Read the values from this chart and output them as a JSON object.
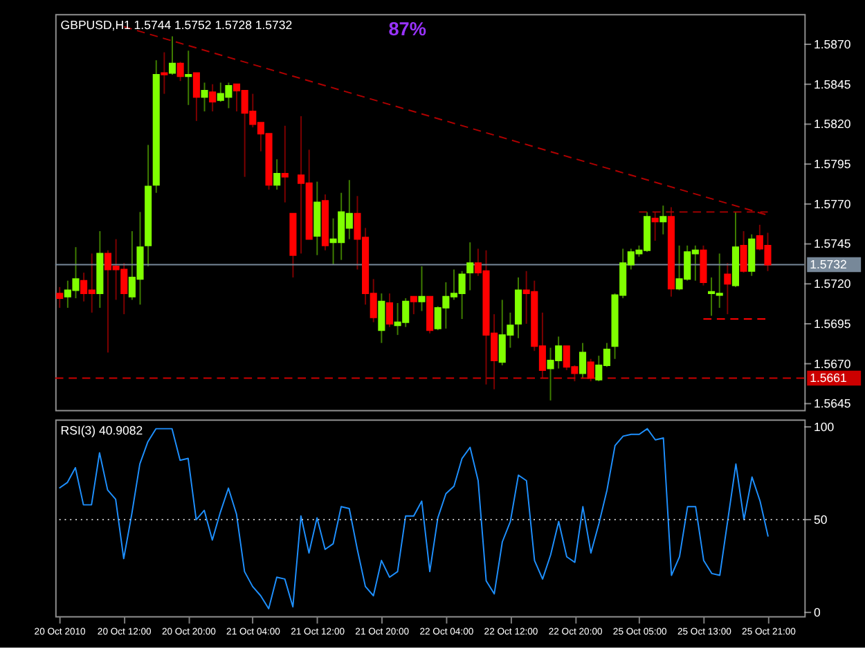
{
  "chart_data": [
    {
      "type": "candlestick",
      "title": "GBPUSD,H1 1.5744 1.5752 1.5728 1.5732",
      "categories": [
        "20 Oct 2010",
        null,
        null,
        null,
        null,
        null,
        null,
        null,
        "20 Oct 12:00",
        null,
        null,
        null,
        null,
        null,
        null,
        null,
        "20 Oct 20:00",
        null,
        null,
        null,
        null,
        null,
        null,
        null,
        "21 Oct 04:00",
        null,
        null,
        null,
        null,
        null,
        null,
        null,
        "21 Oct 12:00",
        null,
        null,
        null,
        null,
        null,
        null,
        null,
        "21 Oct 20:00",
        null,
        null,
        null,
        null,
        null,
        null,
        null,
        "22 Oct 04:00",
        null,
        null,
        null,
        null,
        null,
        null,
        null,
        "22 Oct 12:00",
        null,
        null,
        null,
        null,
        null,
        null,
        null,
        "22 Oct 20:00",
        null,
        null,
        null,
        null,
        null,
        null,
        null,
        "25 Oct 05:00",
        null,
        null,
        null,
        null,
        null,
        null,
        null,
        "25 Oct 13:00",
        null,
        null,
        null,
        null,
        null,
        null,
        null,
        "25 Oct 21:00",
        null,
        null,
        null,
        null
      ],
      "ohlc": [
        [
          1.5714,
          1.5718,
          1.5705,
          1.5711
        ],
        [
          1.5712,
          1.5722,
          1.5705,
          1.5716
        ],
        [
          1.5716,
          1.5743,
          1.5711,
          1.5723
        ],
        [
          1.5722,
          1.5727,
          1.5709,
          1.5714
        ],
        [
          1.5716,
          1.5739,
          1.5702,
          1.5714
        ],
        [
          1.5714,
          1.5753,
          1.5705,
          1.5739
        ],
        [
          1.5739,
          1.5741,
          1.5677,
          1.5729
        ],
        [
          1.5731,
          1.5748,
          1.571,
          1.5729
        ],
        [
          1.5729,
          1.5733,
          1.5701,
          1.5714
        ],
        [
          1.5712,
          1.5753,
          1.571,
          1.5724
        ],
        [
          1.5723,
          1.5765,
          1.5707,
          1.5743
        ],
        [
          1.5744,
          1.5807,
          1.5731,
          1.5781
        ],
        [
          1.5782,
          1.586,
          1.5777,
          1.5851
        ],
        [
          1.5852,
          1.5865,
          1.5839,
          1.5851
        ],
        [
          1.5852,
          1.5875,
          1.5851,
          1.5858
        ],
        [
          1.5858,
          1.5859,
          1.5847,
          1.585
        ],
        [
          1.585,
          1.5866,
          1.5832,
          1.5851
        ],
        [
          1.5852,
          1.5852,
          1.5822,
          1.5837
        ],
        [
          1.5837,
          1.5846,
          1.5828,
          1.5841
        ],
        [
          1.584,
          1.5845,
          1.5828,
          1.5834
        ],
        [
          1.5835,
          1.5846,
          1.5834,
          1.5839
        ],
        [
          1.5837,
          1.5846,
          1.583,
          1.5844
        ],
        [
          1.5845,
          1.5845,
          1.5828,
          1.5841
        ],
        [
          1.5841,
          1.5841,
          1.5787,
          1.5827
        ],
        [
          1.5828,
          1.5839,
          1.5818,
          1.582
        ],
        [
          1.5821,
          1.5821,
          1.5803,
          1.5814
        ],
        [
          1.5814,
          1.5814,
          1.5779,
          1.5782
        ],
        [
          1.5782,
          1.5798,
          1.5779,
          1.5789
        ],
        [
          1.5789,
          1.5819,
          1.5771,
          1.5787
        ],
        [
          1.5764,
          1.5764,
          1.5724,
          1.5738
        ],
        [
          1.5788,
          1.5825,
          1.5739,
          1.5783
        ],
        [
          1.5783,
          1.5804,
          1.5748,
          1.5748
        ],
        [
          1.575,
          1.5784,
          1.5738,
          1.5771
        ],
        [
          1.5772,
          1.5776,
          1.5741,
          1.5744
        ],
        [
          1.5746,
          1.5761,
          1.5732,
          1.5748
        ],
        [
          1.5746,
          1.5777,
          1.5735,
          1.5765
        ],
        [
          1.5755,
          1.5785,
          1.5748,
          1.5764
        ],
        [
          1.5764,
          1.5775,
          1.5729,
          1.5748
        ],
        [
          1.5749,
          1.5755,
          1.5707,
          1.5714
        ],
        [
          1.5714,
          1.5723,
          1.5696,
          1.5699
        ],
        [
          1.5691,
          1.5714,
          1.5683,
          1.5709
        ],
        [
          1.5708,
          1.5714,
          1.5693,
          1.5695
        ],
        [
          1.5694,
          1.5708,
          1.5688,
          1.5696
        ],
        [
          1.5696,
          1.5711,
          1.5693,
          1.5709
        ],
        [
          1.5712,
          1.5712,
          1.5701,
          1.5709
        ],
        [
          1.5709,
          1.5731,
          1.5703,
          1.5712
        ],
        [
          1.5712,
          1.5712,
          1.5689,
          1.5691
        ],
        [
          1.5692,
          1.5706,
          1.5691,
          1.5705
        ],
        [
          1.5705,
          1.5721,
          1.5692,
          1.5712
        ],
        [
          1.5712,
          1.5729,
          1.571,
          1.5714
        ],
        [
          1.5714,
          1.5728,
          1.5698,
          1.5726
        ],
        [
          1.5727,
          1.5746,
          1.5716,
          1.5733
        ],
        [
          1.5733,
          1.5742,
          1.5725,
          1.5727
        ],
        [
          1.5728,
          1.5741,
          1.5657,
          1.5688
        ],
        [
          1.5689,
          1.5701,
          1.5654,
          1.5672
        ],
        [
          1.5671,
          1.571,
          1.5669,
          1.5688
        ],
        [
          1.5688,
          1.5702,
          1.568,
          1.5694
        ],
        [
          1.5695,
          1.5724,
          1.5686,
          1.5716
        ],
        [
          1.5716,
          1.5728,
          1.5695,
          1.5714
        ],
        [
          1.5715,
          1.5722,
          1.5678,
          1.5681
        ],
        [
          1.5681,
          1.5702,
          1.5661,
          1.5666
        ],
        [
          1.5667,
          1.568,
          1.5647,
          1.5672
        ],
        [
          1.5672,
          1.5687,
          1.5667,
          1.5681
        ],
        [
          1.5681,
          1.5681,
          1.5666,
          1.5668
        ],
        [
          1.5668,
          1.5669,
          1.5659,
          1.5664
        ],
        [
          1.5664,
          1.5683,
          1.5661,
          1.5677
        ],
        [
          1.5671,
          1.5673,
          1.5659,
          1.5661
        ],
        [
          1.566,
          1.5675,
          1.5659,
          1.5669
        ],
        [
          1.5669,
          1.5683,
          1.5668,
          1.5679
        ],
        [
          1.5681,
          1.5714,
          1.5673,
          1.5713
        ],
        [
          1.5713,
          1.5742,
          1.5711,
          1.5733
        ],
        [
          1.5732,
          1.5742,
          1.5729,
          1.574
        ],
        [
          1.5739,
          1.5744,
          1.5737,
          1.5741
        ],
        [
          1.5741,
          1.5765,
          1.574,
          1.5762
        ],
        [
          1.5761,
          1.5765,
          1.5747,
          1.5759
        ],
        [
          1.5759,
          1.5769,
          1.5751,
          1.5762
        ],
        [
          1.5762,
          1.5768,
          1.5712,
          1.5717
        ],
        [
          1.5717,
          1.5744,
          1.5716,
          1.5723
        ],
        [
          1.5723,
          1.5744,
          1.5722,
          1.574
        ],
        [
          1.5739,
          1.5744,
          1.5722,
          1.5741
        ],
        [
          1.5741,
          1.5744,
          1.5719,
          1.5721
        ],
        [
          1.5714,
          1.5724,
          1.57,
          1.5715
        ],
        [
          1.5713,
          1.5739,
          1.5705,
          1.5714
        ],
        [
          1.5726,
          1.5733,
          1.5701,
          1.572
        ],
        [
          1.5719,
          1.5765,
          1.5718,
          1.5743
        ],
        [
          1.5744,
          1.5753,
          1.5727,
          1.5728
        ],
        [
          1.5728,
          1.5751,
          1.5725,
          1.5748
        ],
        [
          1.575,
          1.5757,
          1.5741,
          1.5742
        ],
        [
          1.5744,
          1.5752,
          1.5728,
          1.5732
        ],
        null,
        null,
        null,
        null
      ],
      "colors": [
        "#ff0000",
        "#80ff00",
        "#80ff00",
        "#ff0000",
        "#ff0000",
        "#80ff00",
        "#ff0000",
        "#ff0000",
        "#ff0000",
        "#80ff00",
        "#80ff00",
        "#80ff00",
        "#80ff00",
        "#ff0000",
        "#80ff00",
        "#ff0000",
        "#80ff00",
        "#ff0000",
        "#80ff00",
        "#ff0000",
        "#80ff00",
        "#80ff00",
        "#ff0000",
        "#ff0000",
        "#ff0000",
        "#ff0000",
        "#ff0000",
        "#80ff00",
        "#ff0000",
        "#ff0000",
        "#ff0000",
        "#ff0000",
        "#80ff00",
        "#ff0000",
        "#80ff00",
        "#80ff00",
        "#80ff00",
        "#ff0000",
        "#ff0000",
        "#ff0000",
        "#80ff00",
        "#ff0000",
        "#80ff00",
        "#80ff00",
        "#ff0000",
        "#80ff00",
        "#ff0000",
        "#80ff00",
        "#80ff00",
        "#80ff00",
        "#80ff00",
        "#80ff00",
        "#ff0000",
        "#ff0000",
        "#ff0000",
        "#80ff00",
        "#80ff00",
        "#80ff00",
        "#ff0000",
        "#ff0000",
        "#ff0000",
        "#80ff00",
        "#80ff00",
        "#ff0000",
        "#ff0000",
        "#80ff00",
        "#ff0000",
        "#80ff00",
        "#80ff00",
        "#80ff00",
        "#80ff00",
        "#80ff00",
        "#80ff00",
        "#80ff00",
        "#ff0000",
        "#80ff00",
        "#ff0000",
        "#80ff00",
        "#80ff00",
        "#80ff00",
        "#ff0000",
        "#80ff00",
        "#80ff00",
        "#ff0000",
        "#80ff00",
        "#ff0000",
        "#80ff00",
        "#ff0000",
        "#ff0000",
        null,
        null,
        null,
        null
      ],
      "series": [
        {
          "type": "line",
          "x": [
            "20 Oct 12:00",
            "25 Oct 21:00"
          ],
          "values": [
            1.5881,
            1.5763
          ],
          "color": "#b00000",
          "line_style": "dashed"
        },
        {
          "type": "line",
          "x": [
            "25 Oct 05:00",
            "25 Oct 21:00"
          ],
          "values": [
            1.5765,
            1.5765
          ],
          "color": "#b00000",
          "line_style": "dashed"
        },
        {
          "type": "line",
          "x": [
            "25 Oct 13:00",
            "25 Oct 21:00"
          ],
          "values": [
            1.5698,
            1.5698
          ],
          "color": "#ff0000",
          "line_style": "dashed"
        }
      ],
      "ref_lines": [
        {
          "axis": "y",
          "value": 1.5732,
          "label": "1.5732",
          "color": "#778899",
          "line_style": "solid"
        },
        {
          "axis": "y",
          "value": 1.5661,
          "label": "1.5661",
          "color": "#cc0000",
          "line_style": "dashed"
        }
      ],
      "annotations": [
        "87%"
      ],
      "ylim": [
        1.5641,
        1.5889
      ],
      "yticks": [
        1.5645,
        {
          "value": 1.567,
          "label": "1.5670"
        },
        1.5695,
        {
          "value": 1.572,
          "label": "1.5720"
        },
        1.5745,
        {
          "value": 1.577,
          "label": "1.5770"
        },
        1.5795,
        {
          "value": 1.582,
          "label": "1.5820"
        },
        1.5845,
        {
          "value": 1.587,
          "label": "1.5870"
        }
      ],
      "tick_labels": "y"
    },
    {
      "type": "line",
      "title": "RSI(3) 40.9082",
      "color": "#1e90ff",
      "categories": [
        "20 Oct 2010",
        null,
        null,
        null,
        null,
        null,
        null,
        null,
        "20 Oct 12:00",
        null,
        null,
        null,
        null,
        null,
        null,
        null,
        "20 Oct 20:00",
        null,
        null,
        null,
        null,
        null,
        null,
        null,
        "21 Oct 04:00",
        null,
        null,
        null,
        null,
        null,
        null,
        null,
        "21 Oct 12:00",
        null,
        null,
        null,
        null,
        null,
        null,
        null,
        "21 Oct 20:00",
        null,
        null,
        null,
        null,
        null,
        null,
        null,
        "22 Oct 04:00",
        null,
        null,
        null,
        null,
        null,
        null,
        null,
        "22 Oct 12:00",
        null,
        null,
        null,
        null,
        null,
        null,
        null,
        "22 Oct 20:00",
        null,
        null,
        null,
        null,
        null,
        null,
        null,
        "25 Oct 05:00",
        null,
        null,
        null,
        null,
        null,
        null,
        null,
        "25 Oct 13:00",
        null,
        null,
        null,
        null,
        null,
        null,
        null,
        "25 Oct 21:00",
        null,
        null,
        null,
        null
      ],
      "values": [
        67,
        70,
        78,
        58,
        58,
        86,
        66,
        61,
        29,
        53,
        80,
        92,
        99,
        99,
        99,
        82,
        83,
        50,
        55,
        39,
        54,
        67,
        53,
        22,
        14,
        9,
        2,
        19,
        18,
        3,
        52,
        32,
        51,
        34,
        37,
        57,
        56,
        34,
        14,
        9,
        28,
        19,
        22,
        52,
        52,
        60,
        22,
        51,
        64,
        68,
        83,
        89,
        71,
        17,
        10,
        38,
        49,
        74,
        71,
        28,
        18,
        31,
        49,
        30,
        27,
        57,
        32,
        48,
        66,
        90,
        95,
        96,
        96,
        99,
        93,
        94,
        20,
        30,
        57,
        57,
        28,
        21,
        20,
        50,
        80,
        50,
        73,
        60,
        40.9,
        null,
        null,
        null,
        null
      ],
      "ref_lines": [
        {
          "axis": "y",
          "value": 50,
          "color": "#c0c0c0",
          "line_style": "dotted"
        }
      ],
      "ylim": [
        -2,
        104
      ],
      "yticks": [
        0,
        50,
        100
      ]
    }
  ]
}
